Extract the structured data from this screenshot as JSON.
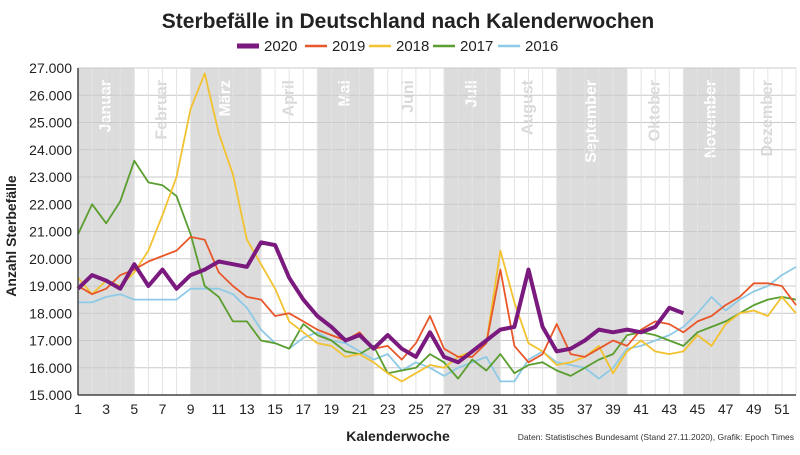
{
  "chart_data": {
    "type": "line",
    "title": "Sterbefälle in Deutschland nach Kalenderwochen",
    "xlabel": "Kalenderwoche",
    "ylabel": "Anzahl Sterbefälle",
    "source": "Daten: Statistisches Bundesamt (Stand 27.11.2020), Grafik: Epoch Times",
    "xlim": [
      1,
      52
    ],
    "ylim": [
      15000,
      27000
    ],
    "x_ticks": [
      1,
      3,
      5,
      7,
      9,
      11,
      13,
      15,
      17,
      19,
      21,
      23,
      25,
      27,
      29,
      31,
      33,
      35,
      37,
      39,
      41,
      43,
      45,
      47,
      49,
      51
    ],
    "y_ticks": [
      15000,
      16000,
      17000,
      18000,
      19000,
      20000,
      21000,
      22000,
      23000,
      24000,
      25000,
      26000,
      27000
    ],
    "y_tick_labels": [
      "15.000",
      "16.000",
      "17.000",
      "18.000",
      "19.000",
      "20.000",
      "21.000",
      "22.000",
      "23.000",
      "24.000",
      "25.000",
      "26.000",
      "27.000"
    ],
    "months": [
      {
        "name": "Januar",
        "start": 1,
        "end": 5,
        "shaded": true
      },
      {
        "name": "Februar",
        "start": 5,
        "end": 9,
        "shaded": false
      },
      {
        "name": "März",
        "start": 9,
        "end": 14,
        "shaded": true
      },
      {
        "name": "April",
        "start": 14,
        "end": 18,
        "shaded": false
      },
      {
        "name": "Mai",
        "start": 18,
        "end": 22,
        "shaded": true
      },
      {
        "name": "Juni",
        "start": 22,
        "end": 27,
        "shaded": false
      },
      {
        "name": "Juli",
        "start": 27,
        "end": 31,
        "shaded": true
      },
      {
        "name": "August",
        "start": 31,
        "end": 35,
        "shaded": false
      },
      {
        "name": "September",
        "start": 35,
        "end": 40,
        "shaded": true
      },
      {
        "name": "Oktober",
        "start": 40,
        "end": 44,
        "shaded": false
      },
      {
        "name": "November",
        "start": 44,
        "end": 48,
        "shaded": true
      },
      {
        "name": "Dezember",
        "start": 48,
        "end": 52,
        "shaded": false
      }
    ],
    "series": [
      {
        "name": "2016",
        "color": "#8ecae6",
        "values": [
          18400,
          18400,
          18600,
          18700,
          18500,
          18500,
          18500,
          18500,
          18900,
          18900,
          18900,
          18700,
          18200,
          17400,
          16900,
          16700,
          17100,
          17300,
          17000,
          16900,
          16600,
          16300,
          16500,
          15900,
          16200,
          16000,
          15700,
          16000,
          16200,
          16400,
          15500,
          15500,
          16300,
          16600,
          16200,
          16100,
          16000,
          15600,
          16000,
          16700,
          16800,
          17000,
          17200,
          17500,
          18000,
          18600,
          18100,
          18500,
          18800,
          19000,
          19400,
          19700
        ]
      },
      {
        "name": "2017",
        "color": "#5a9e2f",
        "values": [
          20900,
          22000,
          21300,
          22100,
          23600,
          22800,
          22700,
          22300,
          20900,
          19000,
          18600,
          17700,
          17700,
          17000,
          16900,
          16700,
          17600,
          17200,
          17000,
          16600,
          16500,
          16800,
          15800,
          15900,
          16000,
          16500,
          16200,
          15600,
          16300,
          15900,
          16500,
          15800,
          16100,
          16200,
          15900,
          15700,
          16000,
          16300,
          16500,
          17200,
          17300,
          17200,
          17000,
          16800,
          17300,
          17500,
          17700,
          18000,
          18300,
          18500,
          18600,
          18500
        ]
      },
      {
        "name": "2018",
        "color": "#f2c230",
        "values": [
          19300,
          18700,
          19200,
          19000,
          19500,
          20300,
          21600,
          23000,
          25500,
          26800,
          24600,
          23100,
          20700,
          19800,
          18900,
          17700,
          17300,
          16900,
          16800,
          16400,
          16500,
          16200,
          15800,
          15500,
          15800,
          16100,
          16000,
          16400,
          16600,
          16900,
          20300,
          18400,
          16900,
          16600,
          16100,
          16200,
          16400,
          16800,
          15800,
          16600,
          17000,
          16600,
          16500,
          16600,
          17200,
          16800,
          17600,
          18000,
          18100,
          17900,
          18600,
          18000
        ]
      },
      {
        "name": "2019",
        "color": "#e8572a",
        "values": [
          19000,
          18700,
          18900,
          19400,
          19600,
          19900,
          20100,
          20300,
          20800,
          20700,
          19500,
          19000,
          18600,
          18500,
          17900,
          18000,
          17700,
          17400,
          17200,
          17000,
          17300,
          16700,
          16800,
          16300,
          16900,
          17900,
          16700,
          16400,
          16400,
          16900,
          19600,
          16800,
          16200,
          16500,
          17600,
          16500,
          16400,
          16700,
          17000,
          16800,
          17400,
          17700,
          17600,
          17300,
          17700,
          17900,
          18300,
          18600,
          19100,
          19100,
          19000,
          18300
        ]
      },
      {
        "name": "2020",
        "color": "#7a1a7e",
        "values": [
          18900,
          19400,
          19200,
          18900,
          19800,
          19000,
          19600,
          18900,
          19400,
          19600,
          19900,
          19800,
          19700,
          20600,
          20500,
          19300,
          18500,
          17900,
          17500,
          17000,
          17200,
          16700,
          17200,
          16700,
          16400,
          17300,
          16400,
          16200,
          16600,
          17000,
          17400,
          17500,
          19600,
          17500,
          16600,
          16700,
          17000,
          17400,
          17300,
          17400,
          17300,
          17500,
          18200,
          18000
        ]
      }
    ]
  }
}
